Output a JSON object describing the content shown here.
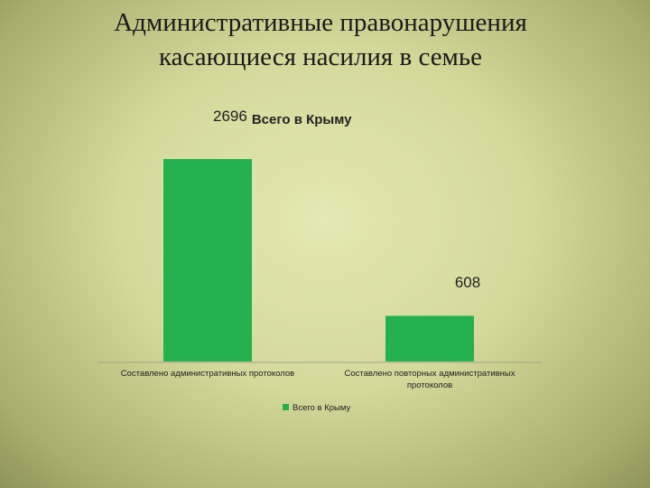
{
  "slide": {
    "title_line1": "Административные правонарушения",
    "title_line2": "касающиеся  насилия в семье"
  },
  "chart_data": {
    "type": "bar",
    "categories": [
      [
        "Составлено административных протоколов"
      ],
      [
        "Составлено повторных административных",
        "протоколов"
      ]
    ],
    "series": [
      {
        "name": "Всего в Крыму",
        "values": [
          2696,
          608
        ],
        "color": "#22b14c"
      }
    ],
    "data_labels": [
      {
        "value": "2696",
        "series_text": "Всего в Крыму"
      },
      {
        "value": "608"
      }
    ],
    "legend": {
      "position": "bottom",
      "entries": [
        "Всего в Крыму"
      ]
    },
    "gridlines": false,
    "value_axis_visible": false
  }
}
